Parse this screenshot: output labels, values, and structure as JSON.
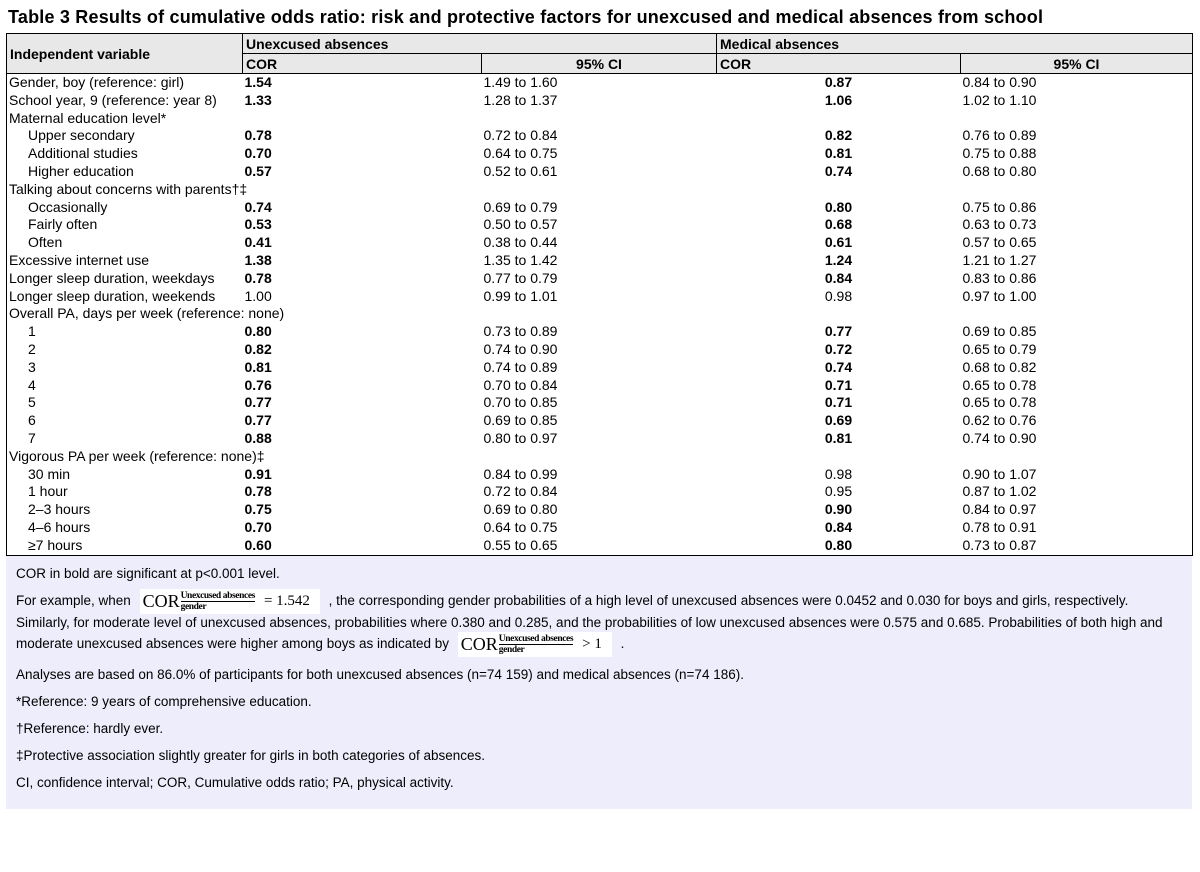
{
  "title": "Table 3 Results of cumulative odds ratio: risk and protective factors for unexcused and medical absences from school",
  "table": {
    "headers": {
      "independent_variable": "Independent variable",
      "unexcused_group": "Unexcused absences",
      "medical_group": "Medical absences",
      "cor": "COR",
      "ci": "95% CI"
    },
    "rows": [
      {
        "label": "Gender, boy (reference: girl)",
        "indent": 0,
        "ucor": "1.54",
        "ubold": true,
        "uci": "1.49 to 1.60",
        "mcor": "0.87",
        "mbold": true,
        "mci": "0.84 to 0.90"
      },
      {
        "label": "School year, 9 (reference: year 8)",
        "indent": 0,
        "ucor": "1.33",
        "ubold": true,
        "uci": "1.28 to 1.37",
        "mcor": "1.06",
        "mbold": true,
        "mci": "1.02 to 1.10"
      },
      {
        "label": "Maternal education level*",
        "section": true
      },
      {
        "label": "Upper secondary",
        "indent": 1,
        "ucor": "0.78",
        "ubold": true,
        "uci": "0.72 to 0.84",
        "mcor": "0.82",
        "mbold": true,
        "mci": "0.76 to 0.89"
      },
      {
        "label": "Additional studies",
        "indent": 1,
        "ucor": "0.70",
        "ubold": true,
        "uci": "0.64 to 0.75",
        "mcor": "0.81",
        "mbold": true,
        "mci": "0.75 to 0.88"
      },
      {
        "label": "Higher education",
        "indent": 1,
        "ucor": "0.57",
        "ubold": true,
        "uci": "0.52 to 0.61",
        "mcor": "0.74",
        "mbold": true,
        "mci": "0.68 to 0.80"
      },
      {
        "label": "Talking about concerns with parents†‡",
        "section": true
      },
      {
        "label": "Occasionally",
        "indent": 1,
        "ucor": "0.74",
        "ubold": true,
        "uci": "0.69 to 0.79",
        "mcor": "0.80",
        "mbold": true,
        "mci": "0.75 to 0.86"
      },
      {
        "label": "Fairly often",
        "indent": 1,
        "ucor": "0.53",
        "ubold": true,
        "uci": "0.50 to 0.57",
        "mcor": "0.68",
        "mbold": true,
        "mci": "0.63 to 0.73"
      },
      {
        "label": "Often",
        "indent": 1,
        "ucor": "0.41",
        "ubold": true,
        "uci": "0.38 to 0.44",
        "mcor": "0.61",
        "mbold": true,
        "mci": "0.57 to 0.65"
      },
      {
        "label": "Excessive internet use",
        "indent": 0,
        "ucor": "1.38",
        "ubold": true,
        "uci": "1.35 to 1.42",
        "mcor": "1.24",
        "mbold": true,
        "mci": "1.21 to 1.27"
      },
      {
        "label": "Longer sleep duration, weekdays",
        "indent": 0,
        "ucor": "0.78",
        "ubold": true,
        "uci": "0.77 to 0.79",
        "mcor": "0.84",
        "mbold": true,
        "mci": "0.83 to 0.86"
      },
      {
        "label": "Longer sleep duration, weekends",
        "indent": 0,
        "ucor": "1.00",
        "ubold": false,
        "uci": "0.99 to 1.01",
        "mcor": "0.98",
        "mbold": false,
        "mci": "0.97 to 1.00"
      },
      {
        "label": "Overall PA, days per week (reference: none)",
        "section": true
      },
      {
        "label": "1",
        "indent": 1,
        "ucor": "0.80",
        "ubold": true,
        "uci": "0.73 to 0.89",
        "mcor": "0.77",
        "mbold": true,
        "mci": "0.69 to 0.85"
      },
      {
        "label": "2",
        "indent": 1,
        "ucor": "0.82",
        "ubold": true,
        "uci": "0.74 to 0.90",
        "mcor": "0.72",
        "mbold": true,
        "mci": "0.65 to 0.79"
      },
      {
        "label": "3",
        "indent": 1,
        "ucor": "0.81",
        "ubold": true,
        "uci": "0.74 to 0.89",
        "mcor": "0.74",
        "mbold": true,
        "mci": "0.68 to 0.82"
      },
      {
        "label": "4",
        "indent": 1,
        "ucor": "0.76",
        "ubold": true,
        "uci": "0.70 to 0.84",
        "mcor": "0.71",
        "mbold": true,
        "mci": "0.65 to 0.78"
      },
      {
        "label": "5",
        "indent": 1,
        "ucor": "0.77",
        "ubold": true,
        "uci": "0.70 to 0.85",
        "mcor": "0.71",
        "mbold": true,
        "mci": "0.65 to 0.78"
      },
      {
        "label": "6",
        "indent": 1,
        "ucor": "0.77",
        "ubold": true,
        "uci": "0.69 to 0.85",
        "mcor": "0.69",
        "mbold": true,
        "mci": "0.62 to 0.76"
      },
      {
        "label": "7",
        "indent": 1,
        "ucor": "0.88",
        "ubold": true,
        "uci": "0.80 to 0.97",
        "mcor": "0.81",
        "mbold": true,
        "mci": "0.74 to 0.90"
      },
      {
        "label": "Vigorous PA per week (reference: none)‡",
        "section": true
      },
      {
        "label": "30 min",
        "indent": 1,
        "ucor": "0.91",
        "ubold": true,
        "uci": "0.84 to 0.99",
        "mcor": "0.98",
        "mbold": false,
        "mci": "0.90 to 1.07"
      },
      {
        "label": "1 hour",
        "indent": 1,
        "ucor": "0.78",
        "ubold": true,
        "uci": "0.72 to 0.84",
        "mcor": "0.95",
        "mbold": false,
        "mci": "0.87 to 1.02"
      },
      {
        "label": "2–3 hours",
        "indent": 1,
        "ucor": "0.75",
        "ubold": true,
        "uci": "0.69 to 0.80",
        "mcor": "0.90",
        "mbold": true,
        "mci": "0.84 to 0.97"
      },
      {
        "label": "4–6 hours",
        "indent": 1,
        "ucor": "0.70",
        "ubold": true,
        "uci": "0.64 to 0.75",
        "mcor": "0.84",
        "mbold": true,
        "mci": "0.78 to 0.91"
      },
      {
        "label": "≥7 hours",
        "indent": 1,
        "ucor": "0.60",
        "ubold": true,
        "uci": "0.55 to 0.65",
        "mcor": "0.80",
        "mbold": true,
        "mci": "0.73 to 0.87"
      }
    ]
  },
  "footnotes": {
    "significance": "COR in bold are significant at p<0.001 level.",
    "example": {
      "pre": "For example, when",
      "formula1": {
        "base": "COR",
        "sup": "Unexcused absences",
        "sub": "gender",
        "rhs": "= 1.542"
      },
      "mid": ", the corresponding gender probabilities of a high level of unexcused absences were 0.0452 and 0.030 for boys and girls, respectively. Similarly, for moderate level of unexcused absences, probabilities where 0.380 and 0.285, and the probabilities of low unexcused absences were 0.575 and 0.685. Probabilities of both high and moderate unexcused absences were higher among boys as indicated by",
      "formula2": {
        "base": "COR",
        "sup": "Unexcused absences",
        "sub": "gender",
        "rhs": "> 1"
      },
      "post": "."
    },
    "analyses": "Analyses are based on 86.0% of participants for both unexcused absences (n=74 159) and medical absences (n=74 186).",
    "ref_star": "*Reference: 9 years of comprehensive education.",
    "ref_dagger": "†Reference: hardly ever.",
    "ref_double_dagger": "‡Protective association slightly greater for girls in both categories of absences.",
    "abbreviations": "CI, confidence interval; COR, Cumulative odds ratio; PA, physical activity."
  },
  "colors": {
    "header_bg": "#E8E8E8",
    "footnote_bg": "#EDEDFB",
    "border": "#000000"
  }
}
